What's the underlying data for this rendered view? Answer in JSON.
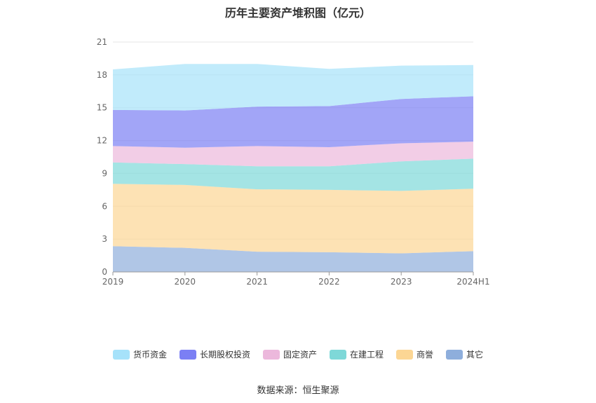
{
  "chart_data": {
    "type": "area",
    "stacked": true,
    "title": "历年主要资产堆积图（亿元）",
    "x": [
      "2019",
      "2020",
      "2021",
      "2022",
      "2023",
      "2024H1"
    ],
    "ylim": [
      0,
      21
    ],
    "yticks": [
      0,
      3,
      6,
      9,
      12,
      15,
      18,
      21
    ],
    "grid": true,
    "legend_position": "bottom",
    "series": [
      {
        "name": "其它",
        "color": "#8eaedc",
        "values": [
          2.35,
          2.2,
          1.85,
          1.8,
          1.7,
          1.9
        ]
      },
      {
        "name": "商誉",
        "color": "#fcd694",
        "values": [
          5.7,
          5.75,
          5.7,
          5.7,
          5.7,
          5.7
        ]
      },
      {
        "name": "在建工程",
        "color": "#7ed8d8",
        "values": [
          1.95,
          1.9,
          2.1,
          2.15,
          2.7,
          2.75
        ]
      },
      {
        "name": "固定资产",
        "color": "#ecb8dc",
        "values": [
          1.5,
          1.5,
          1.85,
          1.75,
          1.65,
          1.55
        ]
      },
      {
        "name": "长期股权投资",
        "color": "#7b7ff4",
        "values": [
          3.3,
          3.4,
          3.6,
          3.75,
          4.05,
          4.15
        ]
      },
      {
        "name": "货币资金",
        "color": "#a6e2fa",
        "values": [
          3.7,
          4.25,
          3.9,
          3.4,
          3.05,
          2.85
        ]
      }
    ],
    "legend_order": [
      "货币资金",
      "长期股权投资",
      "固定资产",
      "在建工程",
      "商誉",
      "其它"
    ],
    "source": "数据来源：恒生聚源"
  }
}
